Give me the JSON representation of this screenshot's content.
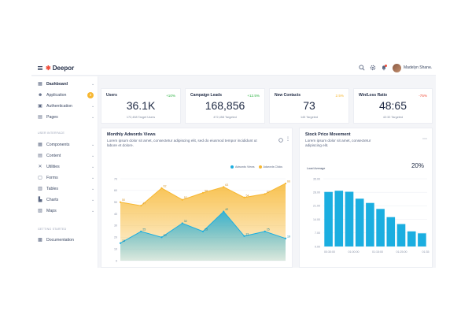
{
  "app": {
    "name": "Deepor"
  },
  "user": {
    "name": "Madelyn Shane"
  },
  "colors": {
    "accent": "#1baee0",
    "secondary": "#f7b731",
    "positive": "#2fb344",
    "warning": "#f7b731",
    "negative": "#f04d3a"
  },
  "sidebar": {
    "items": [
      {
        "label": "Dashboard",
        "icon": "grid-icon"
      },
      {
        "label": "Application",
        "icon": "user-icon",
        "badge": "3"
      },
      {
        "label": "Authentication",
        "icon": "lock-icon"
      },
      {
        "label": "Pages",
        "icon": "file-icon"
      }
    ],
    "section1": "USER INTERFACE",
    "ui_items": [
      {
        "label": "Components",
        "icon": "grid-icon"
      },
      {
        "label": "Content",
        "icon": "file-icon"
      },
      {
        "label": "Utilities",
        "icon": "tools-icon"
      },
      {
        "label": "Forms",
        "icon": "form-icon"
      },
      {
        "label": "Tables",
        "icon": "table-icon"
      },
      {
        "label": "Charts",
        "icon": "chart-icon"
      },
      {
        "label": "Maps",
        "icon": "map-icon"
      }
    ],
    "section2": "GETTING STARTED",
    "gs_items": [
      {
        "label": "Documentation",
        "icon": "book-icon"
      }
    ]
  },
  "stats": [
    {
      "title": "Users",
      "change": "+10%",
      "value": "36.1K",
      "sub": "172,458 Target Users"
    },
    {
      "title": "Campaign Leads",
      "change": "+12.5%",
      "value": "168,856",
      "sub": "472,458 Targeted"
    },
    {
      "title": "New Contacts",
      "change": "2.5%",
      "value": "73",
      "sub": "145 Targeted"
    },
    {
      "title": "Win/Loss Ratio",
      "change": "-75%",
      "value": "48:65",
      "sub": "42:32 Targeted"
    }
  ],
  "adwords": {
    "title": "Monthly Adwords Views",
    "description": "Lorem ipsum dolor sit amet, consectetur adipiscing elit, sed do eiusmod tempor incididunt ut labore et dolore."
  },
  "stock": {
    "title": "Stock Price Movement",
    "description": "Lorem ipsum dolor sit amet, consectetur adipiscing elit.",
    "load_label": "Load Average",
    "load_value": "20%"
  },
  "chart_data": [
    {
      "type": "area",
      "series": [
        {
          "name": "Adwords Views",
          "values": [
            15,
            25,
            20,
            32,
            25,
            42,
            21,
            25,
            19
          ]
        },
        {
          "name": "Adwords Clicks",
          "values": [
            50,
            47,
            62,
            52,
            58,
            63,
            54,
            57,
            66
          ]
        }
      ],
      "y_ticks": [
        "0",
        "10",
        "20",
        "30",
        "40",
        "50",
        "60",
        "70"
      ],
      "ylim": [
        0,
        70
      ],
      "grid": true,
      "legend": "top-right"
    },
    {
      "type": "bar",
      "values": [
        28.2,
        28.8,
        28.3,
        24.7,
        22.5,
        19.4,
        15.2,
        11.6,
        7.8,
        6.8
      ],
      "y_ticks": [
        "0.00",
        "7.00",
        "14.00",
        "21.00",
        "28.00",
        "35.00"
      ],
      "ylim": [
        0,
        35
      ],
      "x_ticks": [
        "00:30:00",
        "01:00:00",
        "01:15:00",
        "01:25:00",
        "01:35"
      ],
      "grid": true
    }
  ]
}
